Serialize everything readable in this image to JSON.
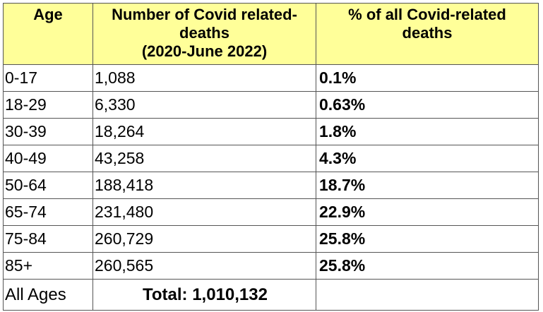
{
  "header": {
    "age": "Age",
    "deaths_line1": "Number of Covid related-",
    "deaths_line2": "deaths",
    "deaths_line3": "(2020-June 2022)",
    "pct_line1": "% of all Covid-related",
    "pct_line2": "deaths"
  },
  "rows": [
    {
      "age": "0-17",
      "deaths": "1,088",
      "pct": "0.1%"
    },
    {
      "age": "18-29",
      "deaths": "6,330",
      "pct": "0.63%"
    },
    {
      "age": "30-39",
      "deaths": "18,264",
      "pct": "1.8%"
    },
    {
      "age": "40-49",
      "deaths": "43,258",
      "pct": "4.3%"
    },
    {
      "age": "50-64",
      "deaths": "188,418",
      "pct": "18.7%"
    },
    {
      "age": "65-74",
      "deaths": "231,480",
      "pct": "22.9%"
    },
    {
      "age": "75-84",
      "deaths": "260,729",
      "pct": "25.8%"
    },
    {
      "age": "85+",
      "deaths": "260,565",
      "pct": "25.8%"
    }
  ],
  "total_row": {
    "age": "All Ages",
    "total": "Total: 1,010,132",
    "pct": ""
  },
  "colors": {
    "header_bg": "#ffff99",
    "border": "#555555"
  }
}
